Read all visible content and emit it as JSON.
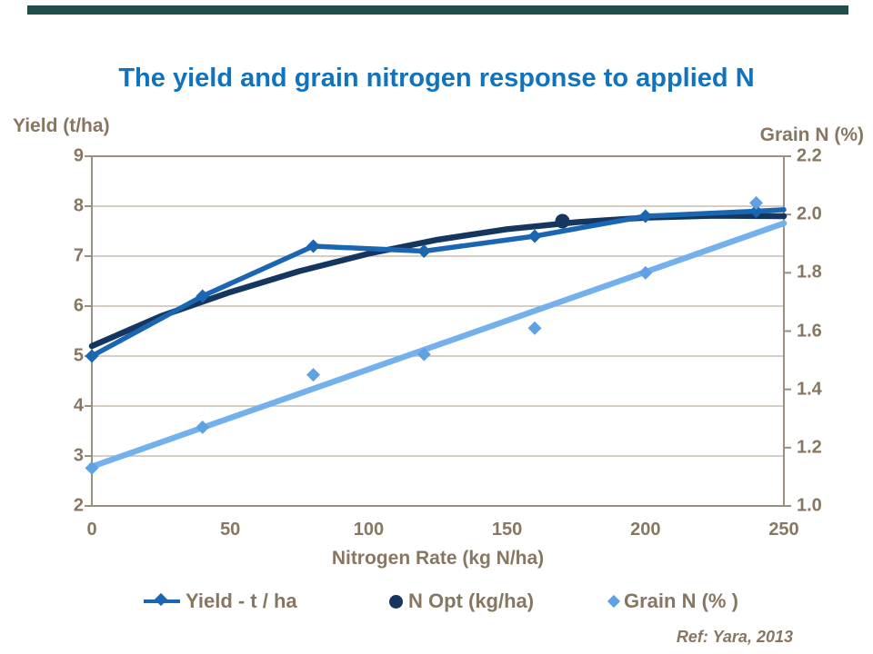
{
  "slide": {
    "title": "The yield and grain nitrogen response to applied N",
    "ref_note": "Ref: Yara, 2013"
  },
  "colors": {
    "top_bar": "#1F4E4B",
    "title_text": "#1173BD",
    "axis_text": "#877762",
    "gridline": "#C6BDB1",
    "plot_border": "#9A9080",
    "yield_series": "#1A66B2",
    "nopt_series": "#15365F",
    "grain_line": "#74B1EC",
    "grain_marker": "#5FA2E4"
  },
  "legend": {
    "items": [
      {
        "label": "Yield - t / ha",
        "marker": "line-diamond",
        "color": "#1A66B2"
      },
      {
        "label": "N Opt (kg/ha)",
        "marker": "circle",
        "color": "#15365F"
      },
      {
        "label": "Grain N (% )",
        "marker": "diamond",
        "color": "#5FA2E4"
      }
    ]
  },
  "chart_data": {
    "type": "line",
    "title": "The yield and grain nitrogen response to applied N",
    "x_axis": {
      "label": "Nitrogen Rate (kg N/ha)",
      "ticks": [
        "0",
        "50",
        "100",
        "150",
        "200",
        "250"
      ],
      "range": [
        0,
        250
      ]
    },
    "y_left_axis": {
      "label": "Yield (t/ha)",
      "ticks": [
        "9",
        "8",
        "7",
        "6",
        "5",
        "4",
        "3",
        "2"
      ],
      "range": [
        2,
        9
      ]
    },
    "y_right_axis": {
      "label": "Grain N (%)",
      "ticks": [
        "2.2",
        "2.0",
        "1.8",
        "1.6",
        "1.4",
        "1.2",
        "1.0"
      ],
      "range": [
        1.0,
        2.2
      ]
    },
    "grid": "horizontal-only",
    "legend_position": "bottom",
    "x": [
      0,
      40,
      80,
      120,
      160,
      200,
      240
    ],
    "series": [
      {
        "name": "Yield - t / ha",
        "axis": "left",
        "marker": "diamond",
        "values": [
          5.0,
          6.2,
          7.2,
          7.1,
          7.4,
          7.8,
          7.9
        ],
        "line_extension_point": [
          250,
          7.93
        ]
      },
      {
        "name": "N Opt (kg/ha)",
        "axis": "left",
        "marker": "circle",
        "opt_point": {
          "x": 170,
          "y": 7.7
        },
        "fitted_curve": [
          [
            0,
            5.2
          ],
          [
            25,
            5.8
          ],
          [
            50,
            6.28
          ],
          [
            75,
            6.7
          ],
          [
            100,
            7.05
          ],
          [
            125,
            7.33
          ],
          [
            150,
            7.54
          ],
          [
            175,
            7.68
          ],
          [
            200,
            7.77
          ],
          [
            225,
            7.81
          ],
          [
            250,
            7.8
          ]
        ]
      },
      {
        "name": "Grain N (% )",
        "axis": "right",
        "marker": "diamond",
        "values": [
          1.13,
          1.27,
          1.45,
          1.52,
          1.61,
          1.8,
          2.04
        ],
        "trend_line": [
          [
            0,
            1.135
          ],
          [
            250,
            1.97
          ]
        ]
      }
    ]
  }
}
